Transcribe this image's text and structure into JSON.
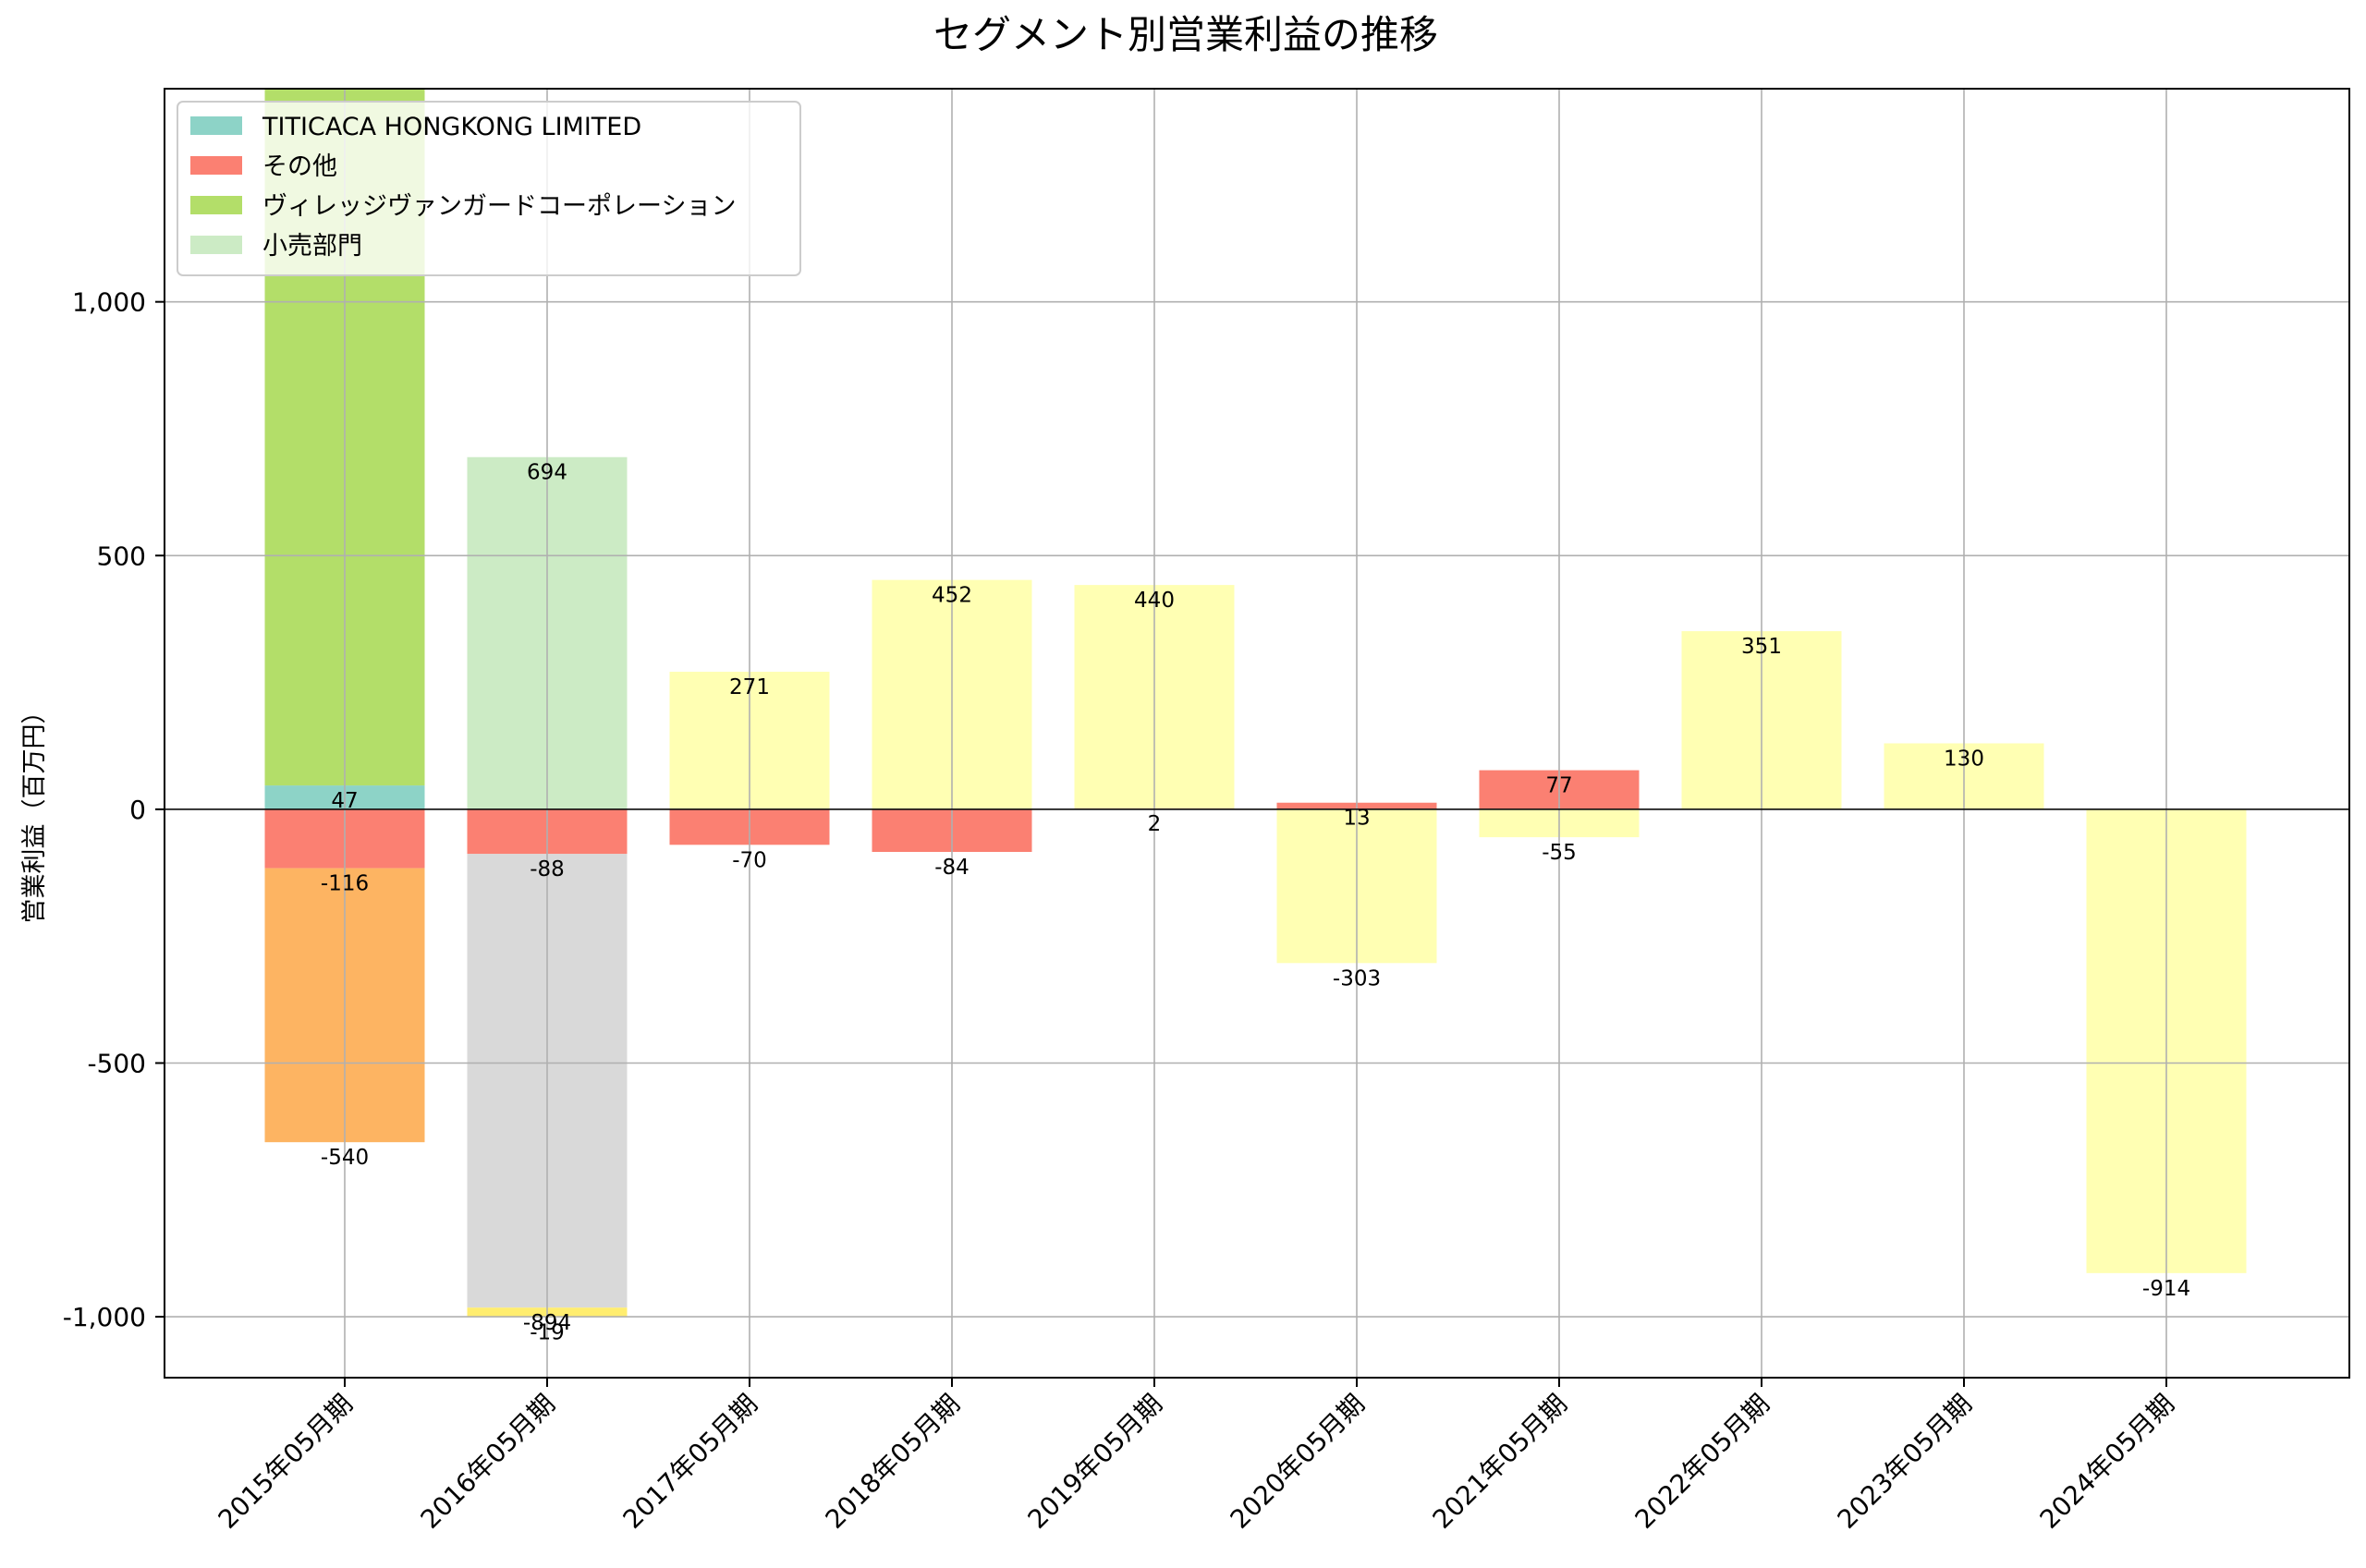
{
  "chart_data": {
    "type": "bar",
    "stacked": true,
    "title": "セグメント別営業利益の推移",
    "ylabel": "営業利益（百万円）",
    "xlabel": "",
    "ylim": [
      -1120,
      1420
    ],
    "yticks": [
      -1000,
      -500,
      0,
      500,
      1000
    ],
    "ytick_labels": [
      "-1,000",
      "-500",
      "0",
      "500",
      "1,000"
    ],
    "grid": true,
    "legend_position": "top-left",
    "categories": [
      "2015年05月期",
      "2016年05月期",
      "2017年05月期",
      "2018年05月期",
      "2019年05月期",
      "2020年05月期",
      "2021年05月期",
      "2022年05月期",
      "2023年05月期",
      "2024年05月期"
    ],
    "series": [
      {
        "name": "TITICACA HONGKONG LIMITED",
        "legend": true,
        "color": "#8dd3c7",
        "values": [
          47,
          null,
          null,
          null,
          null,
          null,
          null,
          null,
          null,
          null
        ]
      },
      {
        "name": "その他",
        "legend": true,
        "color": "#fb8072",
        "values": [
          -116,
          -88,
          -70,
          -84,
          2,
          13,
          77,
          null,
          null,
          null
        ]
      },
      {
        "name": "ヴィレッジヴァンガードコーポレーション",
        "legend": true,
        "color": "#b3de69",
        "values": [
          1420,
          null,
          null,
          null,
          null,
          null,
          null,
          null,
          null,
          null
        ]
      },
      {
        "name": "小売部門",
        "legend": true,
        "color": "#ccebc5",
        "values": [
          null,
          694,
          null,
          null,
          null,
          null,
          null,
          null,
          null,
          null
        ]
      },
      {
        "name": "",
        "legend": false,
        "color": "#fdb462",
        "values": [
          -540,
          null,
          null,
          null,
          null,
          null,
          null,
          null,
          null,
          null
        ]
      },
      {
        "name": "",
        "legend": false,
        "color": "#d9d9d9",
        "values": [
          null,
          -894,
          null,
          null,
          null,
          null,
          null,
          null,
          null,
          null
        ]
      },
      {
        "name": "",
        "legend": false,
        "color": "#ffed6f",
        "values": [
          null,
          -19,
          null,
          null,
          null,
          null,
          null,
          null,
          null,
          null
        ]
      },
      {
        "name": "",
        "legend": false,
        "color": "#ffffb3",
        "values": [
          null,
          null,
          271,
          452,
          440,
          -303,
          -55,
          351,
          130,
          -914
        ]
      }
    ],
    "data_labels": [
      {
        "category": 0,
        "text": "47"
      },
      {
        "category": 0,
        "text": "-116"
      },
      {
        "category": 0,
        "text": "-540"
      },
      {
        "category": 1,
        "text": "694"
      },
      {
        "category": 1,
        "text": "-88"
      },
      {
        "category": 1,
        "text": "-894"
      },
      {
        "category": 1,
        "text": "-19"
      },
      {
        "category": 2,
        "text": "271"
      },
      {
        "category": 2,
        "text": "-70"
      },
      {
        "category": 3,
        "text": "452"
      },
      {
        "category": 3,
        "text": "-84"
      },
      {
        "category": 4,
        "text": "2"
      },
      {
        "category": 4,
        "text": "440"
      },
      {
        "category": 5,
        "text": "13"
      },
      {
        "category": 5,
        "text": "-303"
      },
      {
        "category": 6,
        "text": "77"
      },
      {
        "category": 6,
        "text": "-55"
      },
      {
        "category": 7,
        "text": "351"
      },
      {
        "category": 8,
        "text": "130"
      },
      {
        "category": 9,
        "text": "-914"
      }
    ]
  }
}
